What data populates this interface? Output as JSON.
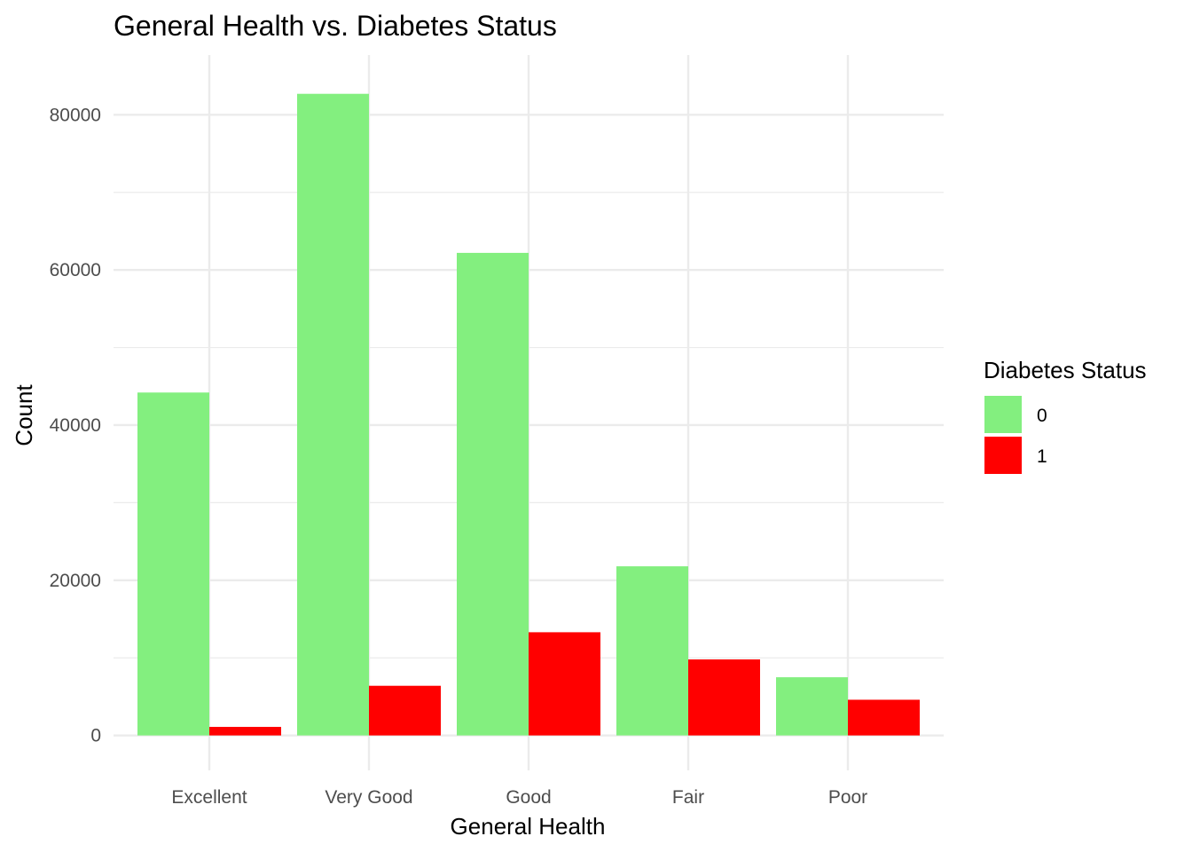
{
  "chart_data": {
    "type": "bar",
    "title": "General Health vs. Diabetes Status",
    "xlabel": "General Health",
    "ylabel": "Count",
    "categories": [
      "Excellent",
      "Very Good",
      "Good",
      "Fair",
      "Poor"
    ],
    "series": [
      {
        "name": "0",
        "color": "#83ef7f",
        "values": [
          44200,
          82700,
          62200,
          21800,
          7500
        ]
      },
      {
        "name": "1",
        "color": "#ff0000",
        "values": [
          1100,
          6400,
          13300,
          9800,
          4600
        ]
      }
    ],
    "ylim": [
      -4500,
      87700
    ],
    "yticks": [
      0,
      20000,
      40000,
      60000,
      80000
    ],
    "ytick_labels": [
      "0",
      "20000",
      "40000",
      "60000",
      "80000"
    ],
    "y_minor_ticks": [
      10000,
      30000,
      50000,
      70000
    ],
    "legend": {
      "title": "Diabetes Status",
      "position": "right"
    },
    "grid": true,
    "grid_color": "#ebebeb"
  }
}
